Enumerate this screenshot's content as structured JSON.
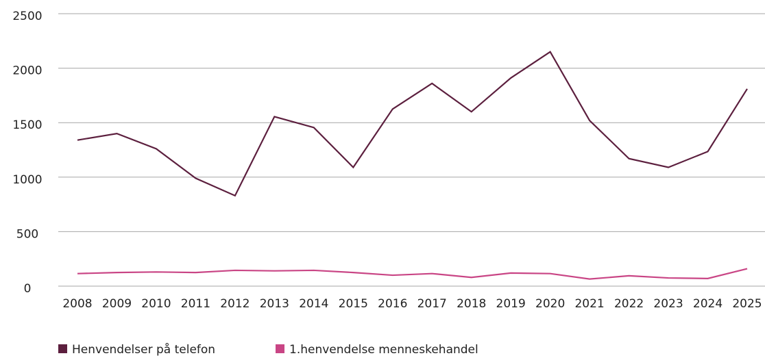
{
  "chart_data": {
    "type": "line",
    "categories": [
      "2008",
      "2009",
      "2010",
      "2011",
      "2012",
      "2013",
      "2014",
      "2015",
      "2016",
      "2017",
      "2018",
      "2019",
      "2020",
      "2021",
      "2022",
      "2023",
      "2024",
      "2025"
    ],
    "series": [
      {
        "name": "Henvendelser på telefon",
        "color": "#5c1f3e",
        "values": [
          1340,
          1400,
          1260,
          990,
          830,
          1555,
          1455,
          1090,
          1625,
          1860,
          1600,
          1910,
          2150,
          1520,
          1170,
          1090,
          1235,
          1810
        ]
      },
      {
        "name": "1.henvendelse menneskehandel",
        "color": "#c94585",
        "values": [
          115,
          125,
          130,
          125,
          145,
          140,
          145,
          125,
          100,
          115,
          80,
          120,
          115,
          65,
          95,
          75,
          70,
          160
        ]
      }
    ],
    "ylim": [
      0,
      2500
    ],
    "yticks": [
      0,
      500,
      1000,
      1500,
      2000,
      2500
    ],
    "grid": true,
    "legend": "bottom-left"
  }
}
